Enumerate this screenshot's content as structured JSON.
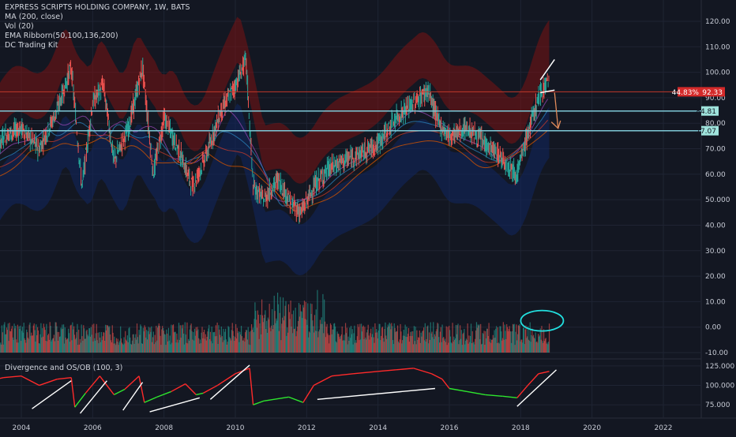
{
  "colors": {
    "background": "#131722",
    "grid": "#1f2433",
    "axis_text": "#c8ccd6",
    "up": "#26a69a",
    "down": "#ef5350",
    "sr_line": "#7ec8d6",
    "resistance_line": "#c0392b",
    "annotation": "#ffffff",
    "circle": "#22e0e0",
    "osc_red": "#ff2a2a",
    "osc_green": "#2ee62e"
  },
  "legend": {
    "title": "EXPRESS SCRIPTS HOLDING COMPANY, 1W, BATS",
    "ma": "MA (200, close)",
    "vol": "Vol (20)",
    "ema": "EMA Ribborn(50,100,136,200)",
    "dc": "DC Trading Kit"
  },
  "oscillator": {
    "title": "Divergence and OS/OB (100, 3)"
  },
  "price_badges": {
    "current_pct": "44.83%",
    "current_price": "92.33",
    "level_upper": "84.81",
    "level_lower": "77.07"
  },
  "chart_data": [
    {
      "type": "line",
      "title": "EXPRESS SCRIPTS HOLDING COMPANY, 1W, BATS",
      "x_ticks": [
        "2004",
        "2006",
        "2008",
        "2010",
        "2012",
        "2014",
        "2016",
        "2018",
        "2020",
        "2022"
      ],
      "y_ticks": [
        "120.00",
        "110.00",
        "100.00",
        "90.00",
        "80.00",
        "70.00",
        "60.00",
        "50.000",
        "40.00",
        "30.00",
        "20.00",
        "10.00",
        "0.00",
        "-10.00"
      ],
      "ylim": [
        -10,
        120
      ],
      "grid": true,
      "series": [
        {
          "name": "close",
          "x": [
            2003.0,
            2003.5,
            2004.0,
            2004.5,
            2005.0,
            2005.4,
            2005.7,
            2006.0,
            2006.3,
            2006.6,
            2007.0,
            2007.4,
            2007.7,
            2008.0,
            2008.4,
            2008.8,
            2009.2,
            2009.6,
            2010.0,
            2010.3,
            2010.5,
            2010.8,
            2011.2,
            2011.6,
            2011.85,
            2012.2,
            2012.6,
            2013.0,
            2013.5,
            2014.0,
            2014.5,
            2015.0,
            2015.4,
            2015.7,
            2016.0,
            2016.5,
            2017.0,
            2017.5,
            2017.9,
            2018.2,
            2018.5,
            2018.75
          ],
          "y": [
            60,
            75,
            78,
            70,
            85,
            102,
            55,
            88,
            95,
            65,
            78,
            102,
            60,
            82,
            70,
            55,
            68,
            85,
            95,
            105,
            55,
            50,
            58,
            48,
            45,
            55,
            62,
            65,
            68,
            72,
            82,
            88,
            93,
            80,
            75,
            78,
            72,
            66,
            60,
            76,
            90,
            97
          ]
        }
      ],
      "horizontal_levels": [
        92.33,
        84.81,
        77.07
      ]
    },
    {
      "type": "line",
      "title": "Divergence and OS/OB (100, 3)",
      "y_ticks": [
        "125.000",
        "100.000",
        "75.000"
      ],
      "ylim": [
        60,
        132
      ],
      "series": [
        {
          "name": "oscillator",
          "x": [
            2003.0,
            2003.5,
            2004.0,
            2004.5,
            2005.0,
            2005.4,
            2005.5,
            2005.8,
            2006.2,
            2006.6,
            2006.9,
            2007.3,
            2007.45,
            2007.8,
            2008.2,
            2008.6,
            2008.9,
            2009.1,
            2009.5,
            2010.0,
            2010.4,
            2010.5,
            2010.8,
            2011.5,
            2011.9,
            2012.2,
            2012.7,
            2013.3,
            2014.0,
            2014.5,
            2015.0,
            2015.5,
            2015.8,
            2016.0,
            2016.5,
            2017.0,
            2017.5,
            2017.9,
            2018.2,
            2018.5,
            2018.8
          ],
          "y": [
            105,
            110,
            112,
            100,
            108,
            110,
            72,
            90,
            112,
            88,
            95,
            112,
            78,
            85,
            92,
            102,
            88,
            90,
            100,
            115,
            122,
            75,
            80,
            85,
            78,
            100,
            112,
            115,
            118,
            120,
            122,
            115,
            108,
            96,
            92,
            88,
            86,
            84,
            100,
            115,
            118
          ]
        }
      ]
    }
  ]
}
